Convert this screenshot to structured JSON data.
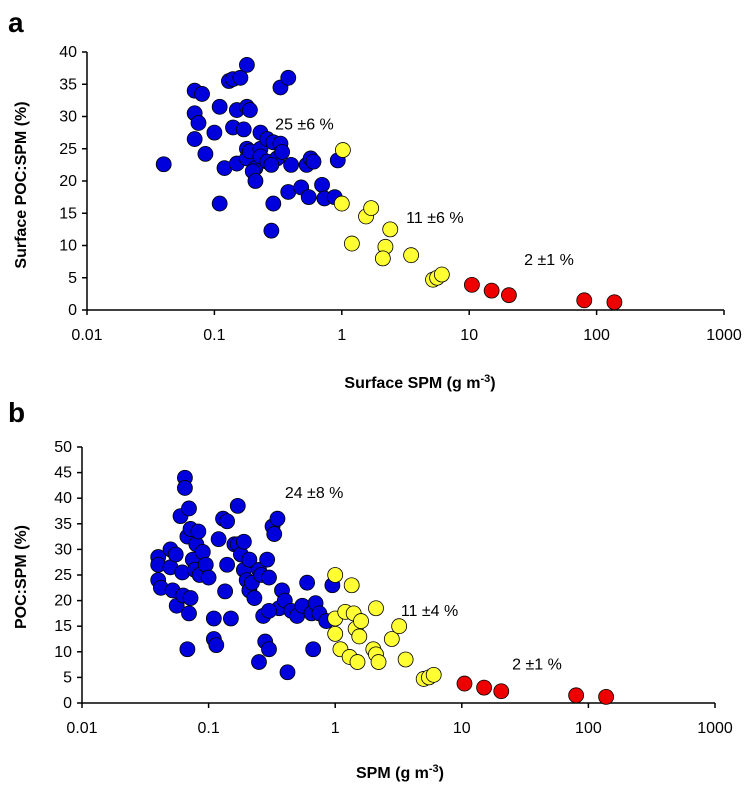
{
  "chart_data": [
    {
      "panel_label": "a",
      "type": "scatter",
      "xscale": "log",
      "xlim": [
        0.01,
        1000
      ],
      "ylim": [
        0,
        40
      ],
      "x_ticks": [
        "0.01",
        "0.1",
        "1",
        "10",
        "100",
        "1000"
      ],
      "y_ticks": [
        "0",
        "5",
        "10",
        "15",
        "20",
        "25",
        "30",
        "35",
        "40"
      ],
      "xlabel": "Surface SPM (g m",
      "xlabel_sup": "-3",
      "xlabel_end": ")",
      "ylabel": "Surface POC:SPM (%)",
      "annotations": [
        {
          "text": "25 ±6 %",
          "x": 0.3,
          "y": 28
        },
        {
          "text": "11 ±6 %",
          "x": 3.2,
          "y": 13.5
        },
        {
          "text": "2 ±1 %",
          "x": 27,
          "y": 7
        }
      ],
      "series": [
        {
          "color": "#0000dd",
          "points": [
            [
              0.04,
              22.6
            ],
            [
              0.07,
              34
            ],
            [
              0.08,
              33.5
            ],
            [
              0.07,
              30.5
            ],
            [
              0.075,
              29
            ],
            [
              0.07,
              26.5
            ],
            [
              0.085,
              24.2
            ],
            [
              0.11,
              31.5
            ],
            [
              0.1,
              27.5
            ],
            [
              0.13,
              35.5
            ],
            [
              0.14,
              35.8
            ],
            [
              0.16,
              36
            ],
            [
              0.18,
              38
            ],
            [
              0.15,
              31
            ],
            [
              0.18,
              31.5
            ],
            [
              0.19,
              31
            ],
            [
              0.14,
              28.3
            ],
            [
              0.17,
              28
            ],
            [
              0.12,
              22
            ],
            [
              0.15,
              22.7
            ],
            [
              0.11,
              16.5
            ],
            [
              0.18,
              25
            ],
            [
              0.18,
              23.5
            ],
            [
              0.19,
              24.6
            ],
            [
              0.21,
              22
            ],
            [
              0.2,
              21.5
            ],
            [
              0.21,
              20
            ],
            [
              0.23,
              25
            ],
            [
              0.23,
              27.5
            ],
            [
              0.26,
              26.5
            ],
            [
              0.29,
              26
            ],
            [
              0.23,
              23.8
            ],
            [
              0.26,
              23
            ],
            [
              0.31,
              23.5
            ],
            [
              0.28,
              22.5
            ],
            [
              0.33,
              25.8
            ],
            [
              0.34,
              24.5
            ],
            [
              0.33,
              34.5
            ],
            [
              0.38,
              36
            ],
            [
              0.4,
              22.5
            ],
            [
              0.38,
              18.3
            ],
            [
              0.29,
              16.5
            ],
            [
              0.28,
              12.3
            ],
            [
              0.53,
              22.5
            ],
            [
              0.57,
              23.5
            ],
            [
              0.6,
              23
            ],
            [
              0.48,
              19
            ],
            [
              0.55,
              17.5
            ],
            [
              0.7,
              19.4
            ],
            [
              0.73,
              17.3
            ],
            [
              0.88,
              17.5
            ],
            [
              0.93,
              23.2
            ]
          ]
        },
        {
          "color": "#ffff33",
          "points": [
            [
              1.02,
              24.8
            ],
            [
              1.0,
              16.5
            ],
            [
              1.2,
              10.3
            ],
            [
              1.55,
              14.5
            ],
            [
              1.7,
              15.8
            ],
            [
              2.2,
              9.8
            ],
            [
              2.4,
              12.5
            ],
            [
              2.1,
              8
            ],
            [
              3.5,
              8.5
            ],
            [
              5.2,
              4.7
            ],
            [
              5.6,
              5
            ],
            [
              6.1,
              5.5
            ]
          ]
        },
        {
          "color": "#ee0000",
          "points": [
            [
              10.5,
              3.9
            ],
            [
              15,
              3
            ],
            [
              20.5,
              2.3
            ],
            [
              80,
              1.5
            ],
            [
              138,
              1.2
            ]
          ]
        }
      ]
    },
    {
      "panel_label": "b",
      "type": "scatter",
      "xscale": "log",
      "xlim": [
        0.01,
        1000
      ],
      "ylim": [
        0,
        50
      ],
      "x_ticks": [
        "0.01",
        "0.1",
        "1",
        "10",
        "100",
        "1000"
      ],
      "y_ticks": [
        "0",
        "5",
        "10",
        "15",
        "20",
        "25",
        "30",
        "35",
        "40",
        "45",
        "50"
      ],
      "xlabel": "SPM (g m",
      "xlabel_sup": "-3",
      "xlabel_end": ")",
      "ylabel": "POC:SPM (%)",
      "annotations": [
        {
          "text": "24 ±8 %",
          "x": 0.4,
          "y": 40
        },
        {
          "text": "11 ±4 %",
          "x": 3.3,
          "y": 17
        },
        {
          "text": "2 ±1 %",
          "x": 25,
          "y": 6.5
        }
      ],
      "series": [
        {
          "color": "#0000dd",
          "points": [
            [
              0.04,
              28.5
            ],
            [
              0.04,
              27
            ],
            [
              0.04,
              24
            ],
            [
              0.042,
              22.5
            ],
            [
              0.05,
              30
            ],
            [
              0.05,
              26.5
            ],
            [
              0.052,
              22
            ],
            [
              0.055,
              29
            ],
            [
              0.056,
              19
            ],
            [
              0.06,
              36.5
            ],
            [
              0.062,
              25.5
            ],
            [
              0.063,
              21
            ],
            [
              0.065,
              44
            ],
            [
              0.065,
              42
            ],
            [
              0.068,
              32.5
            ],
            [
              0.068,
              10.5
            ],
            [
              0.07,
              38
            ],
            [
              0.072,
              34
            ],
            [
              0.075,
              28
            ],
            [
              0.078,
              26
            ],
            [
              0.08,
              31
            ],
            [
              0.083,
              33.5
            ],
            [
              0.085,
              25
            ],
            [
              0.09,
              29.5
            ],
            [
              0.095,
              27
            ],
            [
              0.1,
              24.5
            ],
            [
              0.07,
              17.5
            ],
            [
              0.072,
              20.5
            ],
            [
              0.11,
              16.5
            ],
            [
              0.11,
              12.5
            ],
            [
              0.115,
              11.3
            ],
            [
              0.12,
              32
            ],
            [
              0.13,
              36
            ],
            [
              0.135,
              21.8
            ],
            [
              0.14,
              35.5
            ],
            [
              0.14,
              27
            ],
            [
              0.15,
              16.5
            ],
            [
              0.16,
              31
            ],
            [
              0.17,
              38.5
            ],
            [
              0.17,
              31
            ],
            [
              0.18,
              29
            ],
            [
              0.19,
              31.5
            ],
            [
              0.19,
              26
            ],
            [
              0.2,
              24
            ],
            [
              0.21,
              28
            ],
            [
              0.21,
              22
            ],
            [
              0.22,
              23.5
            ],
            [
              0.23,
              20.5
            ],
            [
              0.25,
              26
            ],
            [
              0.25,
              8
            ],
            [
              0.26,
              25
            ],
            [
              0.27,
              17
            ],
            [
              0.28,
              12
            ],
            [
              0.29,
              28
            ],
            [
              0.3,
              24.5
            ],
            [
              0.3,
              10.5
            ],
            [
              0.32,
              34.5
            ],
            [
              0.33,
              33
            ],
            [
              0.35,
              36
            ],
            [
              0.36,
              18.5
            ],
            [
              0.38,
              22
            ],
            [
              0.4,
              20
            ],
            [
              0.42,
              6
            ],
            [
              0.45,
              18
            ],
            [
              0.5,
              17
            ],
            [
              0.55,
              19
            ],
            [
              0.6,
              23.5
            ],
            [
              0.65,
              17.5
            ],
            [
              0.67,
              10.5
            ],
            [
              0.7,
              19.5
            ],
            [
              0.75,
              17.5
            ],
            [
              0.85,
              16
            ],
            [
              0.95,
              23
            ],
            [
              0.3,
              18
            ]
          ]
        },
        {
          "color": "#ffff33",
          "points": [
            [
              1.0,
              25
            ],
            [
              1.0,
              16.5
            ],
            [
              1.0,
              13.5
            ],
            [
              1.1,
              10.5
            ],
            [
              1.2,
              17.8
            ],
            [
              1.3,
              9
            ],
            [
              1.35,
              23
            ],
            [
              1.4,
              17.5
            ],
            [
              1.45,
              14.5
            ],
            [
              1.5,
              8
            ],
            [
              1.55,
              13
            ],
            [
              1.6,
              16
            ],
            [
              2.0,
              10.5
            ],
            [
              2.1,
              18.5
            ],
            [
              2.1,
              9.5
            ],
            [
              2.2,
              8
            ],
            [
              2.8,
              12.5
            ],
            [
              3.2,
              15
            ],
            [
              3.6,
              8.5
            ],
            [
              5.0,
              4.7
            ],
            [
              5.5,
              5
            ],
            [
              6.0,
              5.5
            ]
          ]
        },
        {
          "color": "#ee0000",
          "points": [
            [
              10.5,
              3.8
            ],
            [
              15,
              3
            ],
            [
              20.5,
              2.3
            ],
            [
              80,
              1.5
            ],
            [
              138,
              1.2
            ]
          ]
        }
      ]
    }
  ]
}
